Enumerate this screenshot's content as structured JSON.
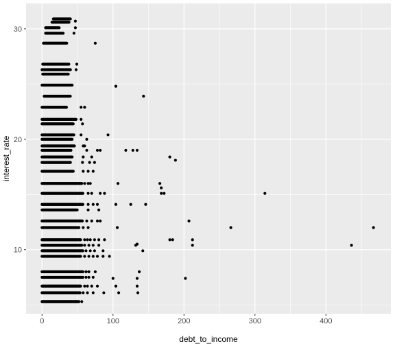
{
  "chart_data": {
    "type": "scatter",
    "title": "",
    "xlabel": "debt_to_income",
    "ylabel": "interest_rate",
    "xlim": [
      -22.5,
      491.5
    ],
    "ylim": [
      4.2,
      32.3
    ],
    "x_ticks": [
      0,
      100,
      200,
      300,
      400
    ],
    "x_tick_labels": [
      "0",
      "100",
      "200",
      "300",
      "400"
    ],
    "y_ticks": [
      10,
      20,
      30
    ],
    "y_tick_labels": [
      "10",
      "20",
      "30"
    ],
    "grid": true,
    "panel_color": "#ebebeb",
    "grid_color": "#ffffff",
    "point_color": "#000000",
    "rate_bands": [
      {
        "y": 30.9,
        "x_min": 16,
        "x_max": 40
      },
      {
        "y": 30.6,
        "x_min": 14,
        "x_max": 38
      },
      {
        "y": 30.1,
        "x_min": 5,
        "x_max": 25
      },
      {
        "y": 29.6,
        "x_min": 5,
        "x_max": 30
      },
      {
        "y": 28.7,
        "x_min": 2,
        "x_max": 35
      },
      {
        "y": 26.8,
        "x_min": 1,
        "x_max": 38
      },
      {
        "y": 26.3,
        "x_min": 0,
        "x_max": 40
      },
      {
        "y": 25.9,
        "x_min": 1,
        "x_max": 37
      },
      {
        "y": 24.9,
        "x_min": 0,
        "x_max": 43
      },
      {
        "y": 23.9,
        "x_min": 3,
        "x_max": 40
      },
      {
        "y": 22.9,
        "x_min": 0,
        "x_max": 35
      },
      {
        "y": 21.8,
        "x_min": 0,
        "x_max": 48
      },
      {
        "y": 21.4,
        "x_min": 0,
        "x_max": 44
      },
      {
        "y": 20.4,
        "x_min": 0,
        "x_max": 45
      },
      {
        "y": 20.0,
        "x_min": 0,
        "x_max": 43
      },
      {
        "y": 19.4,
        "x_min": 0,
        "x_max": 46
      },
      {
        "y": 19.0,
        "x_min": 0,
        "x_max": 41
      },
      {
        "y": 18.4,
        "x_min": 0,
        "x_max": 43
      },
      {
        "y": 17.9,
        "x_min": 0,
        "x_max": 40
      },
      {
        "y": 17.1,
        "x_min": 0,
        "x_max": 44
      },
      {
        "y": 16.0,
        "x_min": 0,
        "x_max": 56
      },
      {
        "y": 15.1,
        "x_min": 0,
        "x_max": 58
      },
      {
        "y": 14.1,
        "x_min": 0,
        "x_max": 58
      },
      {
        "y": 13.6,
        "x_min": 0,
        "x_max": 50
      },
      {
        "y": 12.6,
        "x_min": 0,
        "x_max": 57
      },
      {
        "y": 12.0,
        "x_min": 0,
        "x_max": 52
      },
      {
        "y": 10.9,
        "x_min": 0,
        "x_max": 55
      },
      {
        "y": 10.4,
        "x_min": 0,
        "x_max": 56
      },
      {
        "y": 9.9,
        "x_min": 0,
        "x_max": 58
      },
      {
        "y": 9.4,
        "x_min": 0,
        "x_max": 55
      },
      {
        "y": 8.0,
        "x_min": 0,
        "x_max": 58
      },
      {
        "y": 7.5,
        "x_min": 0,
        "x_max": 58
      },
      {
        "y": 6.7,
        "x_min": 0,
        "x_max": 55
      },
      {
        "y": 6.1,
        "x_min": 0,
        "x_max": 54
      },
      {
        "y": 5.3,
        "x_min": 0,
        "x_max": 52
      }
    ],
    "points": [
      {
        "x": 75,
        "y": 28.7
      },
      {
        "x": 47,
        "y": 30.1
      },
      {
        "x": 45,
        "y": 29.6
      },
      {
        "x": 47,
        "y": 30.7
      },
      {
        "x": 49,
        "y": 26.8
      },
      {
        "x": 48,
        "y": 26.3
      },
      {
        "x": 104,
        "y": 24.8
      },
      {
        "x": 143,
        "y": 23.9
      },
      {
        "x": 55,
        "y": 22.9
      },
      {
        "x": 60,
        "y": 22.9
      },
      {
        "x": 55,
        "y": 21.8
      },
      {
        "x": 57,
        "y": 21.4
      },
      {
        "x": 93,
        "y": 20.4
      },
      {
        "x": 55,
        "y": 20.4
      },
      {
        "x": 63,
        "y": 20.0
      },
      {
        "x": 58,
        "y": 19.4
      },
      {
        "x": 60,
        "y": 19.4
      },
      {
        "x": 63,
        "y": 19.0
      },
      {
        "x": 78,
        "y": 19.0
      },
      {
        "x": 82,
        "y": 19.0
      },
      {
        "x": 118,
        "y": 19.0
      },
      {
        "x": 128,
        "y": 19.0
      },
      {
        "x": 134,
        "y": 19.0
      },
      {
        "x": 58,
        "y": 18.4
      },
      {
        "x": 70,
        "y": 18.4
      },
      {
        "x": 180,
        "y": 18.4
      },
      {
        "x": 57,
        "y": 17.9
      },
      {
        "x": 67,
        "y": 17.9
      },
      {
        "x": 74,
        "y": 17.9
      },
      {
        "x": 188,
        "y": 18.1
      },
      {
        "x": 58,
        "y": 17.1
      },
      {
        "x": 65,
        "y": 17.1
      },
      {
        "x": 72,
        "y": 17.1
      },
      {
        "x": 60,
        "y": 16.0
      },
      {
        "x": 65,
        "y": 16.0
      },
      {
        "x": 68,
        "y": 16.0
      },
      {
        "x": 107,
        "y": 16.0
      },
      {
        "x": 166,
        "y": 16.0
      },
      {
        "x": 168,
        "y": 15.6
      },
      {
        "x": 65,
        "y": 15.1
      },
      {
        "x": 70,
        "y": 15.1
      },
      {
        "x": 82,
        "y": 15.1
      },
      {
        "x": 88,
        "y": 15.1
      },
      {
        "x": 168,
        "y": 15.1
      },
      {
        "x": 172,
        "y": 15.1
      },
      {
        "x": 314,
        "y": 15.1
      },
      {
        "x": 65,
        "y": 14.1
      },
      {
        "x": 72,
        "y": 14.1
      },
      {
        "x": 78,
        "y": 14.1
      },
      {
        "x": 104,
        "y": 14.1
      },
      {
        "x": 125,
        "y": 14.1
      },
      {
        "x": 146,
        "y": 14.1
      },
      {
        "x": 65,
        "y": 13.6
      },
      {
        "x": 80,
        "y": 13.6
      },
      {
        "x": 63,
        "y": 12.6
      },
      {
        "x": 70,
        "y": 12.6
      },
      {
        "x": 78,
        "y": 12.6
      },
      {
        "x": 82,
        "y": 12.6
      },
      {
        "x": 207,
        "y": 12.6
      },
      {
        "x": 58,
        "y": 12.0
      },
      {
        "x": 65,
        "y": 12.0
      },
      {
        "x": 106,
        "y": 12.0
      },
      {
        "x": 266,
        "y": 12.0
      },
      {
        "x": 467,
        "y": 12.0
      },
      {
        "x": 60,
        "y": 10.9
      },
      {
        "x": 64,
        "y": 10.9
      },
      {
        "x": 68,
        "y": 10.9
      },
      {
        "x": 74,
        "y": 10.9
      },
      {
        "x": 80,
        "y": 10.9
      },
      {
        "x": 88,
        "y": 10.9
      },
      {
        "x": 180,
        "y": 10.9
      },
      {
        "x": 184,
        "y": 10.9
      },
      {
        "x": 212,
        "y": 10.9
      },
      {
        "x": 60,
        "y": 10.4
      },
      {
        "x": 66,
        "y": 10.4
      },
      {
        "x": 72,
        "y": 10.4
      },
      {
        "x": 80,
        "y": 10.4
      },
      {
        "x": 132,
        "y": 10.4
      },
      {
        "x": 134,
        "y": 10.5
      },
      {
        "x": 212,
        "y": 10.4
      },
      {
        "x": 436,
        "y": 10.4
      },
      {
        "x": 62,
        "y": 9.9
      },
      {
        "x": 68,
        "y": 9.9
      },
      {
        "x": 74,
        "y": 9.9
      },
      {
        "x": 86,
        "y": 9.9
      },
      {
        "x": 142,
        "y": 9.9
      },
      {
        "x": 60,
        "y": 9.4
      },
      {
        "x": 66,
        "y": 9.4
      },
      {
        "x": 72,
        "y": 9.4
      },
      {
        "x": 78,
        "y": 9.4
      },
      {
        "x": 86,
        "y": 9.4
      },
      {
        "x": 95,
        "y": 9.4
      },
      {
        "x": 62,
        "y": 8.0
      },
      {
        "x": 66,
        "y": 8.0
      },
      {
        "x": 75,
        "y": 8.0
      },
      {
        "x": 137,
        "y": 8.0
      },
      {
        "x": 62,
        "y": 7.5
      },
      {
        "x": 66,
        "y": 7.5
      },
      {
        "x": 72,
        "y": 7.5
      },
      {
        "x": 100,
        "y": 7.4
      },
      {
        "x": 202,
        "y": 7.4
      },
      {
        "x": 134,
        "y": 7.4
      },
      {
        "x": 60,
        "y": 6.7
      },
      {
        "x": 64,
        "y": 6.7
      },
      {
        "x": 70,
        "y": 6.7
      },
      {
        "x": 78,
        "y": 6.7
      },
      {
        "x": 104,
        "y": 6.7
      },
      {
        "x": 134,
        "y": 6.7
      },
      {
        "x": 58,
        "y": 6.1
      },
      {
        "x": 64,
        "y": 6.1
      },
      {
        "x": 72,
        "y": 6.1
      },
      {
        "x": 87,
        "y": 6.1
      },
      {
        "x": 108,
        "y": 6.1
      },
      {
        "x": 135,
        "y": 6.1
      },
      {
        "x": 56,
        "y": 5.3
      }
    ]
  }
}
